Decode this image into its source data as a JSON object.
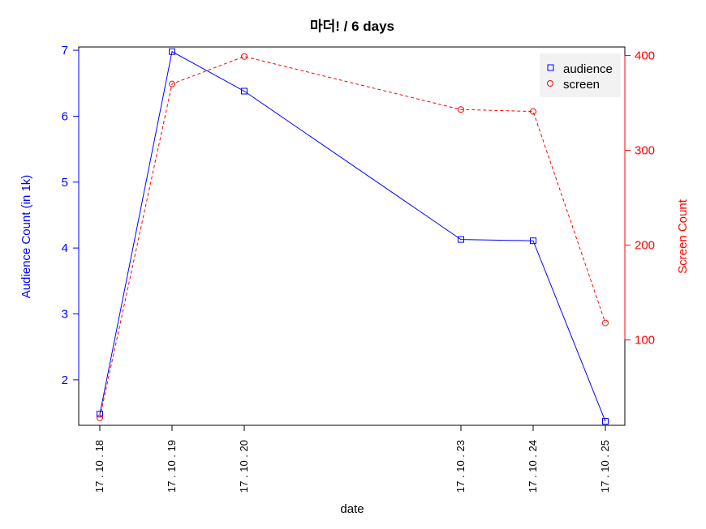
{
  "chart_data": {
    "type": "line",
    "title": "마더! / 6 days",
    "xlabel": "date",
    "categories": [
      "17 . 10 . 18",
      "17 . 10 . 19",
      "17 . 10 . 20",
      "17 . 10 . 23",
      "17 . 10 . 24",
      "17 . 10 . 25"
    ],
    "x_day_offsets": [
      0,
      1,
      2,
      5,
      6,
      7
    ],
    "left_axis": {
      "label": "Audience Count (in 1k)",
      "color": "#0000ff",
      "ticks": [
        2,
        3,
        4,
        5,
        6,
        7
      ],
      "range": [
        1.31,
        7.05
      ]
    },
    "right_axis": {
      "label": "Screen Count",
      "color": "#ff0000",
      "ticks": [
        100,
        200,
        300,
        400
      ],
      "range": [
        10,
        409
      ]
    },
    "series": [
      {
        "name": "audience",
        "axis": "left",
        "color": "#0000ff",
        "marker": "square",
        "line_style": "solid",
        "values": [
          1.48,
          6.98,
          6.38,
          4.13,
          4.11,
          1.37
        ]
      },
      {
        "name": "screen",
        "axis": "right",
        "color": "#ff0000",
        "marker": "circle",
        "line_style": "dashed",
        "values": [
          18,
          370,
          399,
          343,
          341,
          118
        ]
      }
    ],
    "legend": {
      "position": "top-right",
      "background": "#f2f2f2",
      "entries": [
        "audience",
        "screen"
      ]
    },
    "grid": false
  }
}
